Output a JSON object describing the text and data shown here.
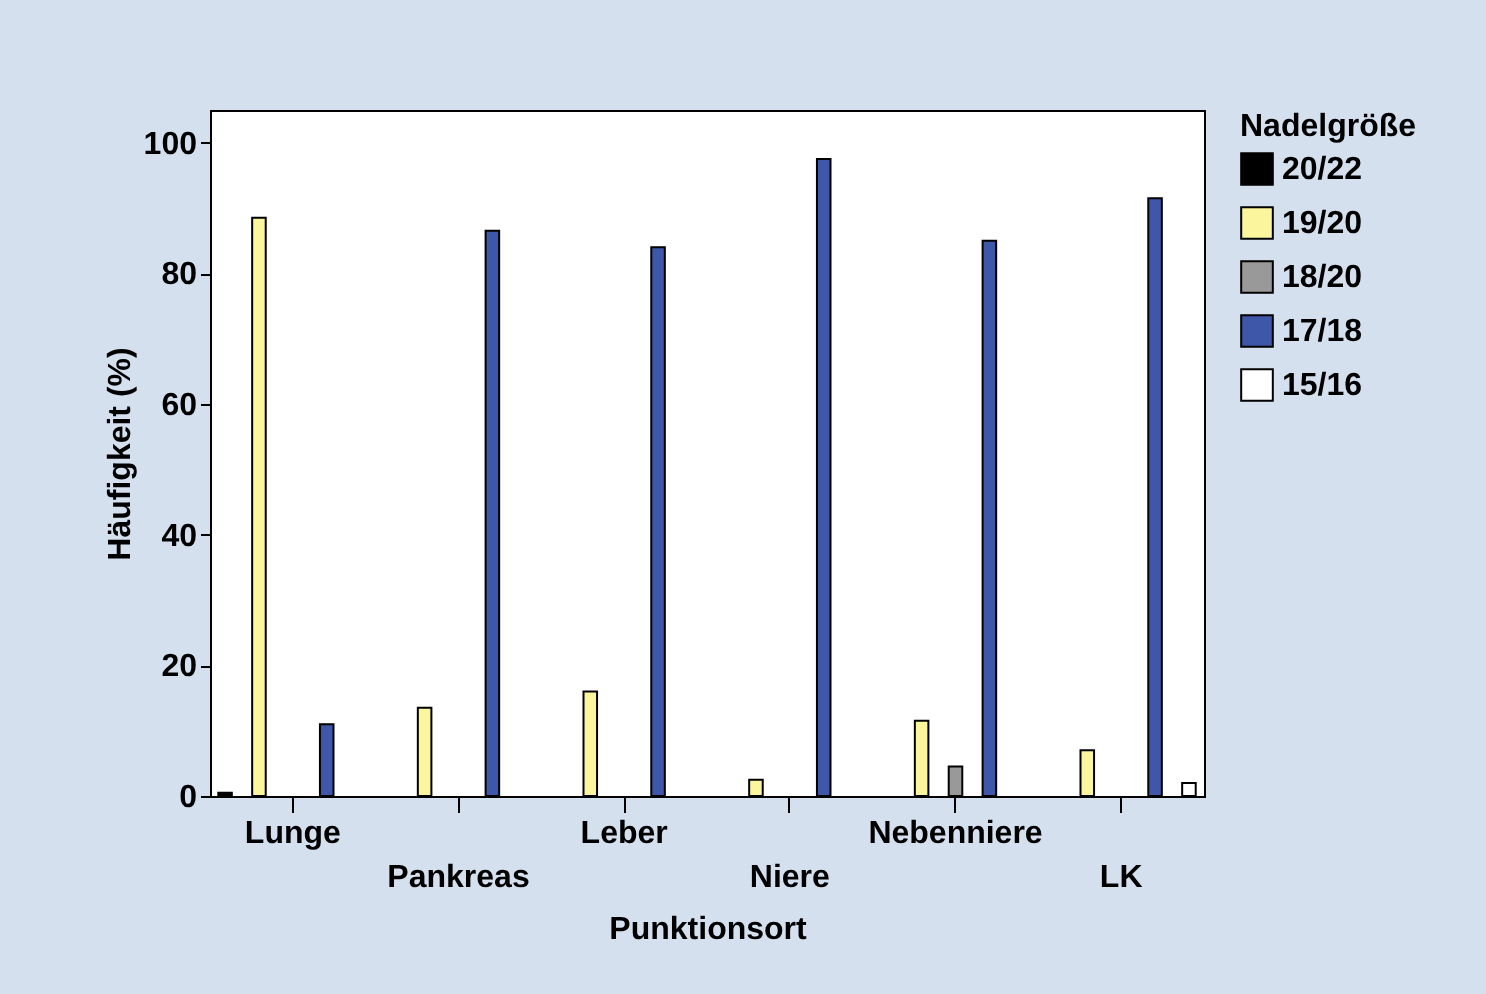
{
  "chart_data": {
    "type": "bar",
    "xlabel": "Punktionsort",
    "ylabel": "Häufigkeit (%)",
    "legend_title": "Nadelgröße",
    "categories": [
      "Lunge",
      "Pankreas",
      "Leber",
      "Niere",
      "Nebenniere",
      "LK"
    ],
    "series": [
      {
        "name": "20/22",
        "color": "#000000",
        "values": [
          0.5,
          null,
          null,
          null,
          null,
          null
        ]
      },
      {
        "name": "19/20",
        "color": "#fbf59d",
        "values": [
          88.5,
          13.5,
          16,
          2.5,
          11.5,
          7
        ]
      },
      {
        "name": "18/20",
        "color": "#999999",
        "values": [
          null,
          null,
          null,
          null,
          4.5,
          null
        ]
      },
      {
        "name": "17/18",
        "color": "#3e57a8",
        "values": [
          11,
          86.5,
          84,
          97.5,
          85,
          91.5
        ]
      },
      {
        "name": "15/16",
        "color": "#ffffff",
        "values": [
          null,
          null,
          null,
          null,
          null,
          2
        ]
      }
    ],
    "ylim": [
      0,
      105
    ],
    "yticks": [
      0,
      20,
      40,
      60,
      80,
      100
    ],
    "grid": false,
    "legend": "right"
  }
}
